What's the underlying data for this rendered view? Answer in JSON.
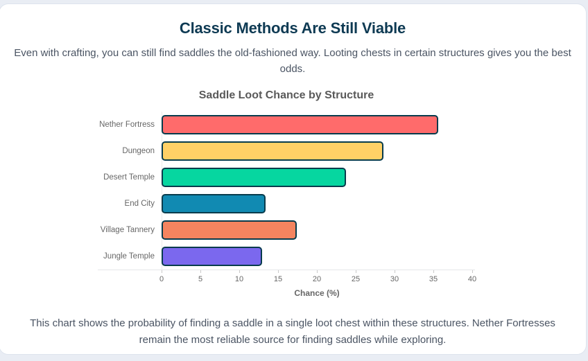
{
  "page": {
    "title": "Classic Methods Are Still Viable",
    "subtitle": "Even with crafting, you can still find saddles the old-fashioned way. Looting chests in certain structures gives you the best odds.",
    "footer": "This chart shows the probability of finding a saddle in a single loot chest within these structures. Nether Fortresses remain the most reliable source for finding saddles while exploring."
  },
  "colors": {
    "background": "#e9edf4",
    "card": "#ffffff",
    "card_border": "#dde3ed",
    "title_text": "#0e3a53",
    "body_text": "#4a5463",
    "chart_text": "#595959",
    "axis_text": "#666666",
    "axis_line": "#e4e6e8"
  },
  "chart_data": {
    "type": "bar",
    "orientation": "horizontal",
    "title": "Saddle Loot Chance by Structure",
    "categories": [
      "Nether Fortress",
      "Dungeon",
      "Desert Temple",
      "End City",
      "Village Tannery",
      "Jungle Temple"
    ],
    "values": [
      35.3,
      28.3,
      23.5,
      13.3,
      17.3,
      12.8
    ],
    "bar_colors": [
      "#FF6B6B",
      "#FFD166",
      "#06D6A0",
      "#118AB2",
      "#F4845F",
      "#7B68EE"
    ],
    "bar_border_color": "#073B4C",
    "xlabel": "Chance (%)",
    "xlim": [
      0,
      40
    ],
    "xticks": [
      0,
      5,
      10,
      15,
      20,
      25,
      30,
      35,
      40
    ],
    "grid": false,
    "legend": false
  }
}
